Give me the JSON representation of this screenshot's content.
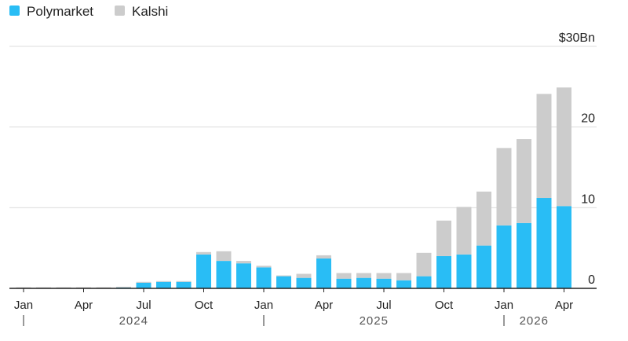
{
  "chart_data": {
    "type": "bar",
    "stacked": true,
    "title": "",
    "xlabel": "",
    "ylabel": "",
    "y_unit_label": "$30Bn",
    "ylim": [
      0,
      30
    ],
    "y_ticks": [
      0,
      10,
      20,
      30
    ],
    "y_tick_labels": [
      "0",
      "10",
      "20",
      "$30Bn"
    ],
    "grid": true,
    "legend_position": "top-left",
    "categories": [
      "2024-01",
      "2024-02",
      "2024-03",
      "2024-04",
      "2024-05",
      "2024-06",
      "2024-07",
      "2024-08",
      "2024-09",
      "2024-10",
      "2024-11",
      "2024-12",
      "2025-01",
      "2025-02",
      "2025-03",
      "2025-04",
      "2025-05",
      "2025-06",
      "2025-07",
      "2025-08",
      "2025-09",
      "2025-10",
      "2025-11",
      "2025-12",
      "2026-01",
      "2026-02",
      "2026-03",
      "2026-04"
    ],
    "x_tick_labels": [
      {
        "index": 0,
        "label": "Jan"
      },
      {
        "index": 3,
        "label": "Apr"
      },
      {
        "index": 6,
        "label": "Jul"
      },
      {
        "index": 9,
        "label": "Oct"
      },
      {
        "index": 12,
        "label": "Jan"
      },
      {
        "index": 15,
        "label": "Apr"
      },
      {
        "index": 18,
        "label": "Jul"
      },
      {
        "index": 21,
        "label": "Oct"
      },
      {
        "index": 24,
        "label": "Jan"
      },
      {
        "index": 27,
        "label": "Apr"
      }
    ],
    "year_labels": [
      {
        "label": "2024",
        "start_index": 0,
        "end_index": 11
      },
      {
        "label": "2025",
        "start_index": 12,
        "end_index": 23
      },
      {
        "label": "2026",
        "start_index": 24,
        "end_index": 27
      }
    ],
    "series": [
      {
        "name": "Polymarket",
        "color": "#29bdf5",
        "values": [
          0.05,
          0.05,
          0.05,
          0.05,
          0.05,
          0.1,
          0.7,
          0.8,
          0.8,
          4.2,
          3.4,
          3.1,
          2.6,
          1.5,
          1.3,
          3.7,
          1.2,
          1.3,
          1.2,
          1.0,
          1.5,
          4.0,
          4.2,
          5.3,
          7.8,
          8.1,
          11.2,
          10.2
        ]
      },
      {
        "name": "Kalshi",
        "color": "#cccccc",
        "values": [
          0.05,
          0.05,
          0.05,
          0.05,
          0.05,
          0.1,
          0.1,
          0.1,
          0.1,
          0.3,
          1.2,
          0.3,
          0.2,
          0.1,
          0.5,
          0.4,
          0.7,
          0.6,
          0.7,
          0.9,
          2.9,
          4.4,
          5.9,
          6.7,
          9.6,
          10.4,
          12.9,
          14.7
        ]
      }
    ]
  }
}
